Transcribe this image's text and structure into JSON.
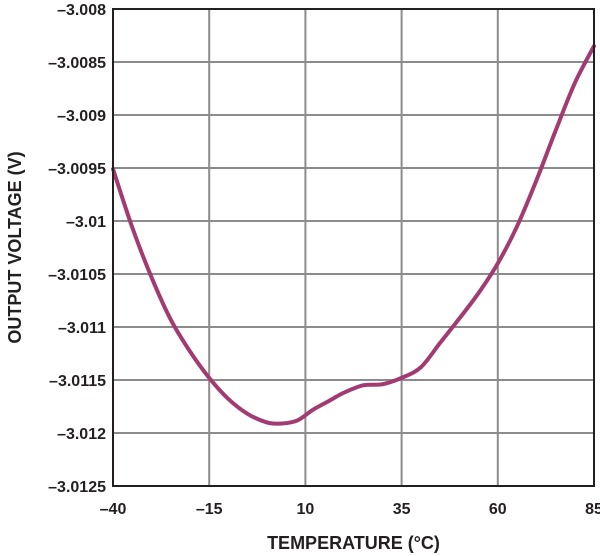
{
  "chart_data": {
    "type": "line",
    "title": "",
    "xlabel": "TEMPERATURE (°C)",
    "ylabel": "OUTPUT VOLTAGE (V)",
    "xlim": [
      -40,
      85
    ],
    "ylim": [
      -3.0125,
      -3.008
    ],
    "x_ticks": [
      -40,
      -15,
      10,
      35,
      60,
      85
    ],
    "x_tick_labels": [
      "–40",
      "–15",
      "10",
      "35",
      "60",
      "85"
    ],
    "y_ticks": [
      -3.008,
      -3.0085,
      -3.009,
      -3.0095,
      -3.01,
      -3.0105,
      -3.011,
      -3.0115,
      -3.012,
      -3.0125
    ],
    "y_tick_labels": [
      "–3.008",
      "–3.0085",
      "–3.009",
      "–3.0095",
      "–3.01",
      "–3.0105",
      "–3.011",
      "–3.0115",
      "–3.012",
      "–3.0125"
    ],
    "grid": true,
    "legend": "none",
    "series": [
      {
        "color": "#a23b72",
        "x": [
          -40,
          -35,
          -30,
          -25,
          -20,
          -15,
          -10,
          -5,
          0,
          4,
          8,
          12,
          16,
          20,
          25,
          30,
          35,
          40,
          45,
          50,
          55,
          60,
          65,
          70,
          75,
          80,
          85
        ],
        "y": [
          -3.00951,
          -3.01006,
          -3.01053,
          -3.01093,
          -3.01123,
          -3.01148,
          -3.01168,
          -3.01182,
          -3.0119,
          -3.01191,
          -3.01188,
          -3.01178,
          -3.0117,
          -3.01162,
          -3.01155,
          -3.01154,
          -3.01148,
          -3.01138,
          -3.01115,
          -3.01092,
          -3.01068,
          -3.0104,
          -3.01005,
          -3.00962,
          -3.00915,
          -3.0087,
          -3.00835
        ]
      }
    ]
  }
}
